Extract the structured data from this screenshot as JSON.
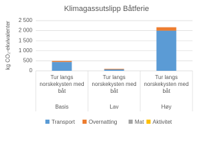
{
  "chart_data": {
    "type": "bar",
    "stacked": true,
    "title": "Klimagassutslipp Båtferie",
    "y_label": "kg CO₂-ekvivalenter",
    "group_labels": [
      "Tur langs norskekysten med båt",
      "Tur langs norskekysten med båt",
      "Tur langs norskekysten med båt"
    ],
    "categories": [
      "Basis",
      "Lav",
      "Høy"
    ],
    "series": [
      {
        "name": "Transport",
        "color": "#5b9bd5",
        "values": [
          440,
          70,
          2000
        ]
      },
      {
        "name": "Overnatting",
        "color": "#ed7d31",
        "values": [
          50,
          30,
          170
        ]
      },
      {
        "name": "Mat",
        "color": "#a5a5a5",
        "values": [
          0,
          0,
          0
        ]
      },
      {
        "name": "Aktivitet",
        "color": "#ffc000",
        "values": [
          0,
          0,
          0
        ]
      }
    ],
    "ylim": [
      0,
      2500
    ],
    "yticks": [
      0,
      500,
      {
        "value": 1000,
        "label": "1 000"
      },
      {
        "value": 1500,
        "label": "1 500"
      },
      {
        "value": 2000,
        "label": "2 000"
      },
      {
        "value": 2500,
        "label": "2 500"
      }
    ],
    "grid": true,
    "legend": "bottom"
  }
}
